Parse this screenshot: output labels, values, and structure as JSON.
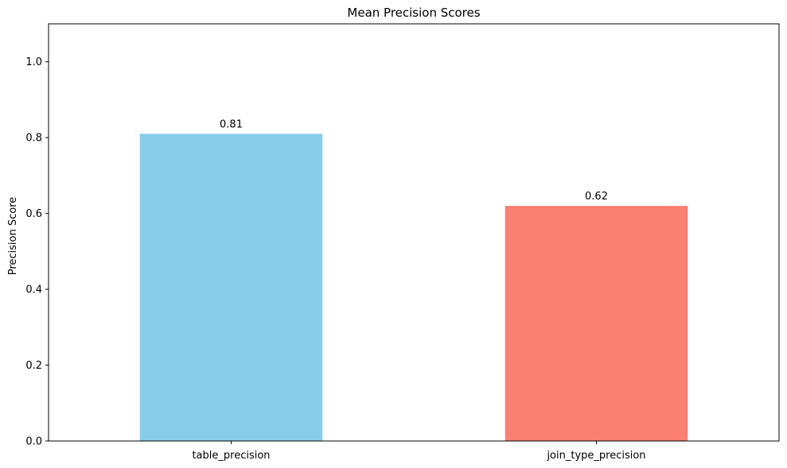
{
  "chart_data": {
    "type": "bar",
    "title": "Mean Precision Scores",
    "xlabel": "",
    "ylabel": "Precision Score",
    "categories": [
      "table_precision",
      "join_type_precision"
    ],
    "values": [
      0.81,
      0.62
    ],
    "value_labels": [
      "0.81",
      "0.62"
    ],
    "colors": [
      "#87ceeb",
      "#fa8072"
    ],
    "ylim": [
      0,
      1.1
    ],
    "yticks": [
      0.0,
      0.2,
      0.4,
      0.6,
      0.8,
      1.0
    ],
    "ytick_labels": [
      "0.0",
      "0.2",
      "0.4",
      "0.6",
      "0.8",
      "1.0"
    ],
    "grid": false,
    "legend": "none"
  }
}
